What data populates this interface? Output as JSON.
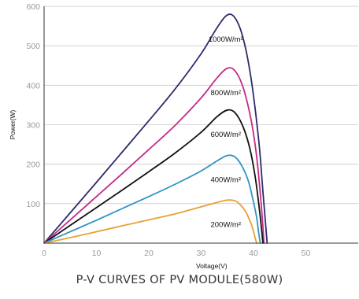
{
  "chart_data": {
    "type": "line",
    "caption": "P-V CURVES OF PV MODULE(580W)",
    "xlabel": "Voltage(V)",
    "ylabel": "Power(W)",
    "xlim": [
      0,
      60
    ],
    "ylim": [
      0,
      600
    ],
    "xticks": [
      0,
      10,
      20,
      30,
      40,
      50
    ],
    "yticks": [
      100,
      200,
      300,
      400,
      500,
      600
    ],
    "grid": "horizontal",
    "series": [
      {
        "name": "1000W/m²",
        "color": "#2e2a6e",
        "x": [
          0,
          5,
          10,
          15,
          20,
          25,
          30,
          33,
          35,
          36.5,
          38,
          39.5,
          41,
          41.8,
          42.3,
          42.6
        ],
        "y": [
          0,
          77,
          154,
          232,
          310,
          390,
          480,
          545,
          578,
          570,
          520,
          420,
          260,
          130,
          50,
          0
        ]
      },
      {
        "name": "800W/m²",
        "color": "#c42a86",
        "x": [
          0,
          5,
          10,
          15,
          20,
          25,
          30,
          33,
          35,
          36.5,
          38,
          39.5,
          40.5,
          41.2,
          41.7,
          42.0
        ],
        "y": [
          0,
          59,
          118,
          177,
          237,
          298,
          368,
          418,
          443,
          436,
          395,
          315,
          230,
          140,
          60,
          0
        ]
      },
      {
        "name": "600W/m²",
        "color": "#111111",
        "x": [
          0,
          5,
          10,
          15,
          20,
          25,
          30,
          33,
          35,
          36.5,
          38,
          39.3,
          40.3,
          41.0,
          41.5,
          41.8
        ],
        "y": [
          0,
          45,
          90,
          135,
          181,
          228,
          281,
          320,
          337,
          330,
          295,
          240,
          170,
          100,
          40,
          0
        ]
      },
      {
        "name": "400W/m²",
        "color": "#2f95c3",
        "x": [
          0,
          5,
          10,
          15,
          20,
          25,
          30,
          33,
          35,
          36.5,
          37.8,
          39.0,
          39.9,
          40.6,
          41.0,
          41.3
        ],
        "y": [
          0,
          29,
          58,
          88,
          118,
          149,
          183,
          208,
          222,
          218,
          195,
          158,
          110,
          65,
          25,
          0
        ]
      },
      {
        "name": "200W/m²",
        "color": "#e8a038",
        "x": [
          0,
          5,
          10,
          15,
          20,
          25,
          30,
          33,
          35,
          36.5,
          37.5,
          38.5,
          39.3,
          39.9,
          40.3,
          40.6
        ],
        "y": [
          0,
          14,
          29,
          44,
          59,
          74,
          92,
          103,
          109,
          107,
          97,
          80,
          57,
          35,
          14,
          0
        ]
      }
    ]
  }
}
